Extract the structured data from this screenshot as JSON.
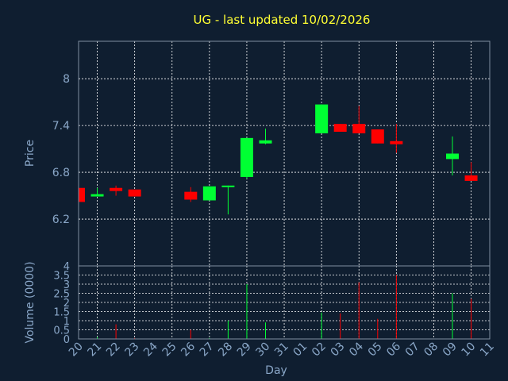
{
  "chart_data": {
    "type": "candlestick",
    "title": "UG - last updated 10/02/2026",
    "xlabel": "Day",
    "colors": {
      "background": "#0f1e30",
      "text": "#8aa7c8",
      "title": "#ffff33",
      "up": "#00ff33",
      "down": "#ff0000",
      "grid": "#ffffff"
    },
    "price_panel": {
      "ylabel": "Price",
      "ylim": [
        5.6,
        8.48
      ],
      "yticks": [
        "8",
        "7.4",
        "6.8",
        "6.2"
      ],
      "ytick_values": [
        8,
        7.4,
        6.8,
        6.2
      ]
    },
    "volume_panel": {
      "ylabel": "Volume (0000)",
      "ylim": [
        0,
        4
      ],
      "yticks": [
        "4",
        "3.5",
        "3",
        "2.5",
        "2",
        "1.5",
        "1",
        "0.5",
        "0"
      ],
      "ytick_values": [
        4,
        3.5,
        3,
        2.5,
        2,
        1.5,
        1,
        0.5,
        0
      ]
    },
    "x_labels": [
      "20",
      "21",
      "22",
      "23",
      "24",
      "25",
      "26",
      "27",
      "28",
      "29",
      "30",
      "31",
      "01",
      "02",
      "03",
      "04",
      "05",
      "06",
      "07",
      "08",
      "09",
      "10",
      "11"
    ],
    "gridline_labels": [
      "21",
      "23",
      "25",
      "27",
      "29",
      "31",
      "02",
      "04",
      "06",
      "08",
      "10"
    ],
    "candles": [
      {
        "day": "20",
        "open": 6.6,
        "close": 6.42,
        "high": 6.6,
        "low": 6.42,
        "volume": 0.0
      },
      {
        "day": "21",
        "open": 6.49,
        "close": 6.52,
        "high": 6.6,
        "low": 6.49,
        "volume": 0.1
      },
      {
        "day": "22",
        "open": 6.6,
        "close": 6.56,
        "high": 6.63,
        "low": 6.5,
        "volume": 0.8
      },
      {
        "day": "23",
        "open": 6.58,
        "close": 6.49,
        "high": 6.58,
        "low": 6.49,
        "volume": 0.05
      },
      {
        "day": "26",
        "open": 6.55,
        "close": 6.45,
        "high": 6.61,
        "low": 6.42,
        "volume": 0.5
      },
      {
        "day": "27",
        "open": 6.44,
        "close": 6.62,
        "high": 6.62,
        "low": 6.44,
        "volume": 0.05
      },
      {
        "day": "28",
        "open": 6.62,
        "close": 6.63,
        "high": 6.63,
        "low": 6.26,
        "volume": 1.0
      },
      {
        "day": "29",
        "open": 6.74,
        "close": 7.24,
        "high": 7.24,
        "low": 6.72,
        "volume": 3.0
      },
      {
        "day": "30",
        "open": 7.17,
        "close": 7.21,
        "high": 7.36,
        "low": 7.16,
        "volume": 0.9
      },
      {
        "day": "02",
        "open": 7.3,
        "close": 7.67,
        "high": 7.67,
        "low": 7.3,
        "volume": 1.45
      },
      {
        "day": "03",
        "open": 7.42,
        "close": 7.32,
        "high": 7.42,
        "low": 7.32,
        "volume": 1.4
      },
      {
        "day": "04",
        "open": 7.42,
        "close": 7.3,
        "high": 7.65,
        "low": 7.3,
        "volume": 3.1
      },
      {
        "day": "05",
        "open": 7.35,
        "close": 7.17,
        "high": 7.35,
        "low": 7.17,
        "volume": 1.1
      },
      {
        "day": "06",
        "open": 7.2,
        "close": 7.16,
        "high": 7.42,
        "low": 7.05,
        "volume": 3.5
      },
      {
        "day": "09",
        "open": 6.97,
        "close": 7.04,
        "high": 7.26,
        "low": 6.76,
        "volume": 2.5
      },
      {
        "day": "10",
        "open": 6.76,
        "close": 6.69,
        "high": 6.93,
        "low": 6.69,
        "volume": 2.2
      }
    ]
  }
}
